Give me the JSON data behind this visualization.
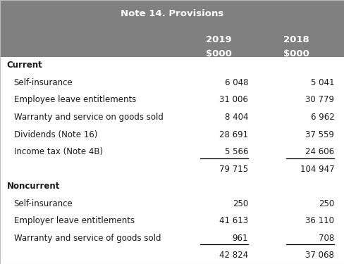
{
  "title": "Note 14. Provisions",
  "header_bg": "#808080",
  "header_text_color": "#ffffff",
  "sections": [
    {
      "label": "Current",
      "val2019": "",
      "val2018": "",
      "is_section_header": true,
      "underline": false,
      "is_total": false
    },
    {
      "label": "Self-insurance",
      "val2019": "6 048",
      "val2018": "5 041",
      "is_section_header": false,
      "underline": false,
      "is_total": false
    },
    {
      "label": "Employee leave entitlements",
      "val2019": "31 006",
      "val2018": "30 779",
      "is_section_header": false,
      "underline": false,
      "is_total": false
    },
    {
      "label": "Warranty and service on goods sold",
      "val2019": "8 404",
      "val2018": "6 962",
      "is_section_header": false,
      "underline": false,
      "is_total": false
    },
    {
      "label": "Dividends (Note 16)",
      "val2019": "28 691",
      "val2018": "37 559",
      "is_section_header": false,
      "underline": false,
      "is_total": false
    },
    {
      "label": "Income tax (Note 4B)",
      "val2019": "5 566",
      "val2018": "24 606",
      "is_section_header": false,
      "underline": true,
      "is_total": false
    },
    {
      "label": "",
      "val2019": "79 715",
      "val2018": "104 947",
      "is_section_header": false,
      "underline": false,
      "is_total": true
    },
    {
      "label": "Noncurrent",
      "val2019": "",
      "val2018": "",
      "is_section_header": true,
      "underline": false,
      "is_total": false
    },
    {
      "label": "Self-insurance",
      "val2019": "250",
      "val2018": "250",
      "is_section_header": false,
      "underline": false,
      "is_total": false
    },
    {
      "label": "Employer leave entitlements",
      "val2019": "41 613",
      "val2018": "36 110",
      "is_section_header": false,
      "underline": false,
      "is_total": false
    },
    {
      "label": "Warranty and service of goods sold",
      "val2019": "961",
      "val2018": "708",
      "is_section_header": false,
      "underline": true,
      "is_total": false
    },
    {
      "label": "",
      "val2019": "42 824",
      "val2018": "37 068",
      "is_section_header": false,
      "underline": false,
      "is_total": true
    }
  ],
  "bg_color": "#ffffff",
  "text_color": "#1a1a1a",
  "font_size": 8.5,
  "header_font_size": 9.5,
  "col1_header": "2019",
  "col2_header": "2018",
  "col_subheader": "$000"
}
